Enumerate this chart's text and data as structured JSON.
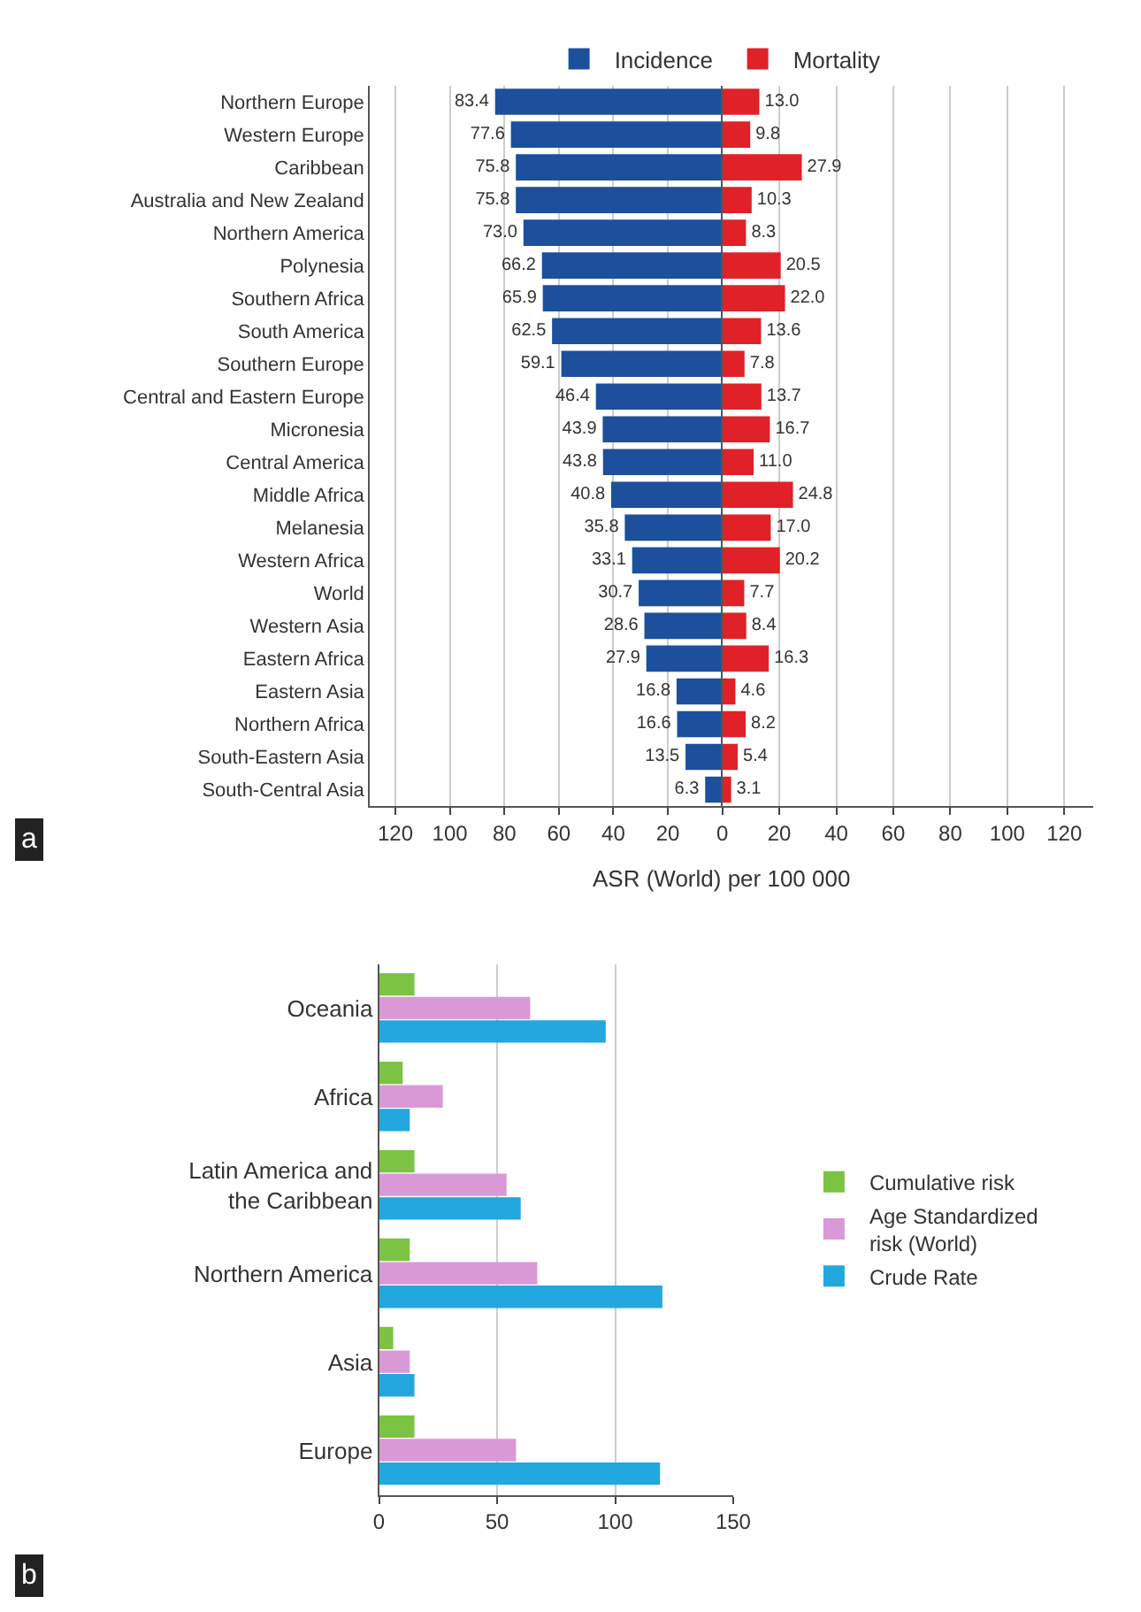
{
  "chart_data": [
    {
      "type": "bar",
      "orientation": "horizontal",
      "xlabel": "ASR (World) per 100 000",
      "legend": "top",
      "grid": "x",
      "categories": [
        "Northern Europe",
        "Western Europe",
        "Caribbean",
        "Australia and New Zealand",
        "Northern America",
        "Polynesia",
        "Southern Africa",
        "South America",
        "Southern Europe",
        "Central and Eastern Europe",
        "Micronesia",
        "Central America",
        "Middle Africa",
        "Melanesia",
        "Western Africa",
        "World",
        "Western Asia",
        "Eastern Africa",
        "Eastern Asia",
        "Northern Africa",
        "South-Eastern Asia",
        "South-Central Asia"
      ],
      "xlim": [
        130,
        0
      ],
      "xticks": [
        120,
        100,
        80,
        60,
        40,
        20
      ],
      "series": [
        {
          "name": "Incidence",
          "color": "#1c4f9c",
          "values": [
            83.4,
            77.6,
            75.8,
            75.8,
            73.0,
            66.2,
            65.9,
            62.5,
            59.1,
            46.4,
            43.9,
            43.8,
            40.8,
            35.8,
            33.1,
            30.7,
            28.6,
            27.9,
            16.8,
            16.6,
            13.5,
            6.3
          ],
          "value_labels": [
            "83.4",
            "77.6",
            "75.8",
            "75.8",
            "73.0",
            "66.2",
            "65.9",
            "62.5",
            "59.1",
            "46.4",
            "43.9",
            "43.8",
            "40.8",
            "35.8",
            "33.1",
            "30.7",
            "28.6",
            "27.9",
            "16.8",
            "16.6",
            "13.5",
            "6.3"
          ]
        }
      ],
      "annotations": [
        "a"
      ]
    },
    {
      "type": "bar",
      "orientation": "horizontal",
      "legend": "top",
      "grid": "x",
      "tick_labels": "x",
      "xlim": [
        0,
        130
      ],
      "xticks": [
        0,
        20,
        40,
        60,
        80,
        100,
        120
      ],
      "series": [
        {
          "name": "Mortality",
          "color": "#e02128",
          "values": [
            13.0,
            9.8,
            27.9,
            10.3,
            8.3,
            20.5,
            22.0,
            13.6,
            7.8,
            13.7,
            16.7,
            11.0,
            24.8,
            17.0,
            20.2,
            7.7,
            8.4,
            16.3,
            4.6,
            8.2,
            5.4,
            3.1
          ],
          "value_labels": [
            "13.0",
            "9.8",
            "27.9",
            "10.3",
            "8.3",
            "20.5",
            "22.0",
            "13.6",
            "7.8",
            "13.7",
            "16.7",
            "11.0",
            "24.8",
            "17.0",
            "20.2",
            "7.7",
            "8.4",
            "16.3",
            "4.6",
            "8.2",
            "5.4",
            "3.1"
          ]
        }
      ]
    },
    {
      "type": "bar",
      "orientation": "horizontal",
      "legend": "right",
      "grid": "x",
      "categories": [
        "Oceania",
        "Africa",
        "Latin America and the Caribbean",
        "Northern America",
        "Asia",
        "Europe"
      ],
      "xlim": [
        0,
        150
      ],
      "xticks": [
        0,
        50,
        100,
        150
      ],
      "series": [
        {
          "name": "Cumulative risk",
          "color": "#7cc243",
          "values": [
            15,
            10,
            15,
            13,
            6,
            15
          ]
        },
        {
          "name": "Age Standardized risk (World)",
          "color": "#d999d6",
          "values": [
            64,
            27,
            54,
            67,
            13,
            58
          ]
        },
        {
          "name": "Crude Rate",
          "color": "#22a7df",
          "values": [
            96,
            13,
            60,
            120,
            15,
            119
          ]
        }
      ],
      "annotations": [
        "b"
      ]
    }
  ]
}
